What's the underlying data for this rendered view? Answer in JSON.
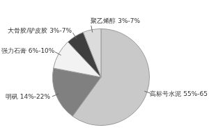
{
  "chart_data": {
    "type": "pie",
    "categories": [
      "高标号水泥 55%-65",
      "明矾 14%-22%",
      "强力石膏 6%-10%",
      "大骨胶/驴皮胶 3%-7%",
      "聚乙烯醇 3%-7%"
    ],
    "values": [
      60,
      18,
      10,
      6,
      6
    ],
    "colors": [
      "#c9c9c9",
      "#808080",
      "#f2f2f2",
      "#3f3f3f",
      "#dcdcdc"
    ]
  }
}
